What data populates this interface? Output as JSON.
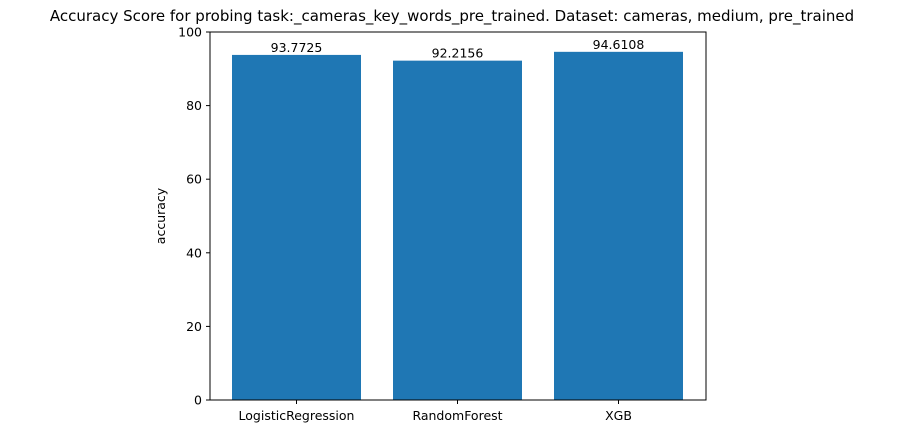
{
  "chart_data": {
    "type": "bar",
    "title": "Accuracy Score for probing task:_cameras_key_words_pre_trained. Dataset: cameras, medium, pre_trained",
    "xlabel": "",
    "ylabel": "accuracy",
    "categories": [
      "LogisticRegression",
      "RandomForest",
      "XGB"
    ],
    "values": [
      93.7725,
      92.2156,
      94.6108
    ],
    "data_labels": [
      "93.7725",
      "92.2156",
      "94.6108"
    ],
    "ylim": [
      0,
      100
    ],
    "yticks": [
      0,
      20,
      40,
      60,
      80,
      100
    ],
    "ytick_labels": [
      "0",
      "20",
      "40",
      "60",
      "80",
      "100"
    ],
    "grid": false,
    "bar_color": "#1f77b4"
  }
}
